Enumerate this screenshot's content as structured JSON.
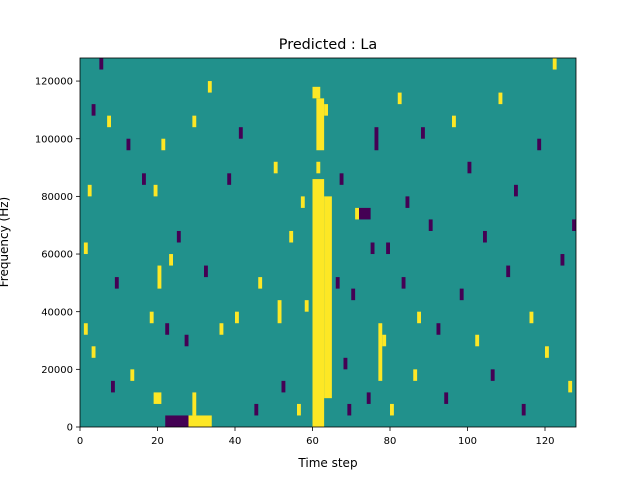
{
  "chart_data": {
    "type": "heatmap",
    "title": "Predicted : La",
    "xlabel": "Time step",
    "ylabel": "Frequency (Hz)",
    "xlim": [
      0,
      128
    ],
    "ylim": [
      0,
      128000
    ],
    "x_ticks": [
      0,
      20,
      40,
      60,
      80,
      100,
      120
    ],
    "y_ticks": [
      0,
      20000,
      40000,
      60000,
      80000,
      100000,
      120000
    ],
    "colors": {
      "background": "#21918c",
      "high": "#fde725",
      "low": "#440154"
    },
    "grid": false,
    "legend": "none",
    "cells": [
      {
        "x": 60,
        "x1": 63,
        "y": 0,
        "y1": 86000,
        "level": "high"
      },
      {
        "x": 63,
        "x1": 65,
        "y": 10000,
        "y1": 80000,
        "level": "high"
      },
      {
        "x": 61,
        "x1": 63,
        "y": 96000,
        "y1": 114000,
        "level": "high"
      },
      {
        "x": 60,
        "x1": 62,
        "y": 114000,
        "y1": 118000,
        "level": "high"
      },
      {
        "x": 63,
        "x1": 64,
        "y": 108000,
        "y1": 112000,
        "level": "high"
      },
      {
        "x": 61,
        "x1": 62,
        "y": 88000,
        "y1": 92000,
        "level": "high"
      },
      {
        "x": 24,
        "x1": 28,
        "y": 0,
        "y1": 4000,
        "level": "low"
      },
      {
        "x": 28,
        "x1": 34,
        "y": 0,
        "y1": 4000,
        "level": "high"
      },
      {
        "x": 29,
        "x1": 30,
        "y": 4000,
        "y1": 12000,
        "level": "high"
      },
      {
        "x": 19,
        "x1": 21,
        "y": 8000,
        "y1": 12000,
        "level": "high"
      },
      {
        "x": 22,
        "x1": 24,
        "y": 0,
        "y1": 4000,
        "level": "low"
      },
      {
        "x": 3,
        "x1": 4,
        "y": 24000,
        "y1": 28000,
        "level": "high"
      },
      {
        "x": 1,
        "x1": 2,
        "y": 32000,
        "y1": 36000,
        "level": "high"
      },
      {
        "x": 1,
        "x1": 2,
        "y": 60000,
        "y1": 64000,
        "level": "high"
      },
      {
        "x": 2,
        "x1": 3,
        "y": 80000,
        "y1": 84000,
        "level": "high"
      },
      {
        "x": 3,
        "x1": 4,
        "y": 108000,
        "y1": 112000,
        "level": "low"
      },
      {
        "x": 5,
        "x1": 6,
        "y": 124000,
        "y1": 128000,
        "level": "low"
      },
      {
        "x": 7,
        "x1": 8,
        "y": 104000,
        "y1": 108000,
        "level": "high"
      },
      {
        "x": 8,
        "x1": 9,
        "y": 12000,
        "y1": 16000,
        "level": "low"
      },
      {
        "x": 9,
        "x1": 10,
        "y": 48000,
        "y1": 52000,
        "level": "low"
      },
      {
        "x": 12,
        "x1": 13,
        "y": 96000,
        "y1": 100000,
        "level": "low"
      },
      {
        "x": 13,
        "x1": 14,
        "y": 16000,
        "y1": 20000,
        "level": "high"
      },
      {
        "x": 16,
        "x1": 17,
        "y": 84000,
        "y1": 88000,
        "level": "low"
      },
      {
        "x": 18,
        "x1": 19,
        "y": 36000,
        "y1": 40000,
        "level": "high"
      },
      {
        "x": 19,
        "x1": 20,
        "y": 80000,
        "y1": 84000,
        "level": "high"
      },
      {
        "x": 20,
        "x1": 21,
        "y": 48000,
        "y1": 56000,
        "level": "high"
      },
      {
        "x": 21,
        "x1": 22,
        "y": 96000,
        "y1": 100000,
        "level": "high"
      },
      {
        "x": 22,
        "x1": 23,
        "y": 32000,
        "y1": 36000,
        "level": "low"
      },
      {
        "x": 23,
        "x1": 24,
        "y": 56000,
        "y1": 60000,
        "level": "high"
      },
      {
        "x": 25,
        "x1": 26,
        "y": 64000,
        "y1": 68000,
        "level": "low"
      },
      {
        "x": 27,
        "x1": 28,
        "y": 28000,
        "y1": 32000,
        "level": "low"
      },
      {
        "x": 29,
        "x1": 30,
        "y": 104000,
        "y1": 108000,
        "level": "high"
      },
      {
        "x": 32,
        "x1": 33,
        "y": 52000,
        "y1": 56000,
        "level": "low"
      },
      {
        "x": 33,
        "x1": 34,
        "y": 116000,
        "y1": 120000,
        "level": "high"
      },
      {
        "x": 36,
        "x1": 37,
        "y": 32000,
        "y1": 36000,
        "level": "high"
      },
      {
        "x": 38,
        "x1": 39,
        "y": 84000,
        "y1": 88000,
        "level": "low"
      },
      {
        "x": 40,
        "x1": 41,
        "y": 36000,
        "y1": 40000,
        "level": "high"
      },
      {
        "x": 41,
        "x1": 42,
        "y": 100000,
        "y1": 104000,
        "level": "low"
      },
      {
        "x": 45,
        "x1": 46,
        "y": 4000,
        "y1": 8000,
        "level": "low"
      },
      {
        "x": 46,
        "x1": 47,
        "y": 48000,
        "y1": 52000,
        "level": "high"
      },
      {
        "x": 50,
        "x1": 51,
        "y": 88000,
        "y1": 92000,
        "level": "high"
      },
      {
        "x": 51,
        "x1": 52,
        "y": 36000,
        "y1": 44000,
        "level": "high"
      },
      {
        "x": 52,
        "x1": 53,
        "y": 12000,
        "y1": 16000,
        "level": "low"
      },
      {
        "x": 54,
        "x1": 55,
        "y": 64000,
        "y1": 68000,
        "level": "high"
      },
      {
        "x": 56,
        "x1": 57,
        "y": 4000,
        "y1": 8000,
        "level": "high"
      },
      {
        "x": 57,
        "x1": 58,
        "y": 76000,
        "y1": 80000,
        "level": "high"
      },
      {
        "x": 58,
        "x1": 59,
        "y": 40000,
        "y1": 44000,
        "level": "high"
      },
      {
        "x": 66,
        "x1": 67,
        "y": 48000,
        "y1": 52000,
        "level": "low"
      },
      {
        "x": 67,
        "x1": 68,
        "y": 84000,
        "y1": 88000,
        "level": "low"
      },
      {
        "x": 68,
        "x1": 69,
        "y": 20000,
        "y1": 24000,
        "level": "low"
      },
      {
        "x": 69,
        "x1": 70,
        "y": 4000,
        "y1": 8000,
        "level": "low"
      },
      {
        "x": 70,
        "x1": 71,
        "y": 44000,
        "y1": 48000,
        "level": "low"
      },
      {
        "x": 71,
        "x1": 72,
        "y": 72000,
        "y1": 76000,
        "level": "high"
      },
      {
        "x": 72,
        "x1": 75,
        "y": 72000,
        "y1": 76000,
        "level": "low"
      },
      {
        "x": 74,
        "x1": 75,
        "y": 8000,
        "y1": 12000,
        "level": "low"
      },
      {
        "x": 75,
        "x1": 76,
        "y": 60000,
        "y1": 64000,
        "level": "low"
      },
      {
        "x": 76,
        "x1": 77,
        "y": 96000,
        "y1": 104000,
        "level": "low"
      },
      {
        "x": 77,
        "x1": 78,
        "y": 16000,
        "y1": 36000,
        "level": "high"
      },
      {
        "x": 78,
        "x1": 79,
        "y": 28000,
        "y1": 32000,
        "level": "high"
      },
      {
        "x": 79,
        "x1": 80,
        "y": 60000,
        "y1": 64000,
        "level": "low"
      },
      {
        "x": 80,
        "x1": 81,
        "y": 4000,
        "y1": 8000,
        "level": "high"
      },
      {
        "x": 82,
        "x1": 83,
        "y": 112000,
        "y1": 116000,
        "level": "high"
      },
      {
        "x": 83,
        "x1": 84,
        "y": 48000,
        "y1": 52000,
        "level": "low"
      },
      {
        "x": 84,
        "x1": 85,
        "y": 76000,
        "y1": 80000,
        "level": "low"
      },
      {
        "x": 86,
        "x1": 87,
        "y": 16000,
        "y1": 20000,
        "level": "high"
      },
      {
        "x": 87,
        "x1": 88,
        "y": 36000,
        "y1": 40000,
        "level": "high"
      },
      {
        "x": 88,
        "x1": 89,
        "y": 100000,
        "y1": 104000,
        "level": "low"
      },
      {
        "x": 90,
        "x1": 91,
        "y": 68000,
        "y1": 72000,
        "level": "low"
      },
      {
        "x": 92,
        "x1": 93,
        "y": 32000,
        "y1": 36000,
        "level": "low"
      },
      {
        "x": 94,
        "x1": 95,
        "y": 8000,
        "y1": 12000,
        "level": "low"
      },
      {
        "x": 96,
        "x1": 97,
        "y": 104000,
        "y1": 108000,
        "level": "high"
      },
      {
        "x": 98,
        "x1": 99,
        "y": 44000,
        "y1": 48000,
        "level": "low"
      },
      {
        "x": 100,
        "x1": 101,
        "y": 88000,
        "y1": 92000,
        "level": "low"
      },
      {
        "x": 102,
        "x1": 103,
        "y": 28000,
        "y1": 32000,
        "level": "high"
      },
      {
        "x": 104,
        "x1": 105,
        "y": 64000,
        "y1": 68000,
        "level": "low"
      },
      {
        "x": 106,
        "x1": 107,
        "y": 16000,
        "y1": 20000,
        "level": "low"
      },
      {
        "x": 108,
        "x1": 109,
        "y": 112000,
        "y1": 116000,
        "level": "high"
      },
      {
        "x": 110,
        "x1": 111,
        "y": 52000,
        "y1": 56000,
        "level": "low"
      },
      {
        "x": 112,
        "x1": 113,
        "y": 80000,
        "y1": 84000,
        "level": "low"
      },
      {
        "x": 114,
        "x1": 115,
        "y": 4000,
        "y1": 8000,
        "level": "low"
      },
      {
        "x": 116,
        "x1": 117,
        "y": 36000,
        "y1": 40000,
        "level": "high"
      },
      {
        "x": 118,
        "x1": 119,
        "y": 96000,
        "y1": 100000,
        "level": "low"
      },
      {
        "x": 120,
        "x1": 121,
        "y": 24000,
        "y1": 28000,
        "level": "high"
      },
      {
        "x": 122,
        "x1": 123,
        "y": 124000,
        "y1": 128000,
        "level": "high"
      },
      {
        "x": 124,
        "x1": 125,
        "y": 56000,
        "y1": 60000,
        "level": "low"
      },
      {
        "x": 126,
        "x1": 127,
        "y": 12000,
        "y1": 16000,
        "level": "high"
      },
      {
        "x": 127,
        "x1": 128,
        "y": 68000,
        "y1": 72000,
        "level": "low"
      }
    ]
  }
}
